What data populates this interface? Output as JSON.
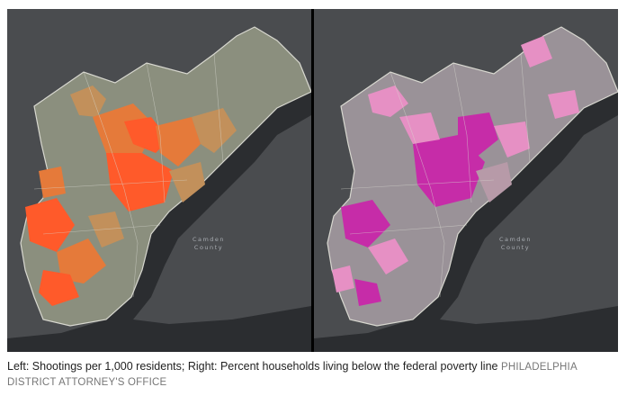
{
  "maps": {
    "left": {
      "label_line1": "Camden",
      "label_line2": "County",
      "fill_color": "#ff5a2a"
    },
    "right": {
      "label_line1": "Camden",
      "label_line2": "County",
      "fill_color": "#c62ca8"
    },
    "colors": {
      "background": "#4a4c4f",
      "water": "#2b2d30",
      "base_tract": "#8b8f7e",
      "left_low": "#c2905b",
      "left_mid": "#e57a3a",
      "left_high": "#ff5a2a",
      "right_low": "#b79aa8",
      "right_mid": "#e690c4",
      "right_high": "#c62ca8"
    }
  },
  "caption": {
    "text": "Left: Shootings per 1,000 residents; Right: Percent households living below the federal poverty line",
    "credit": "PHILADELPHIA DISTRICT ATTORNEY'S OFFICE"
  }
}
